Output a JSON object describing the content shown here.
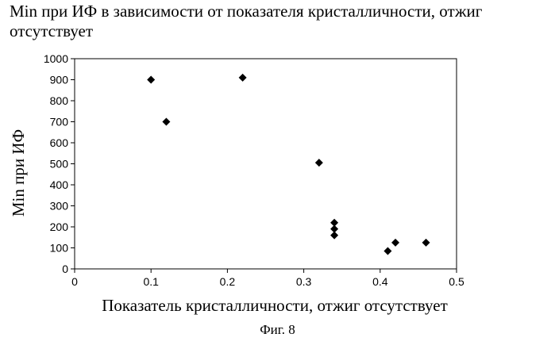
{
  "chart_data": {
    "type": "scatter",
    "title": "Min при ИФ в зависимости от показателя кристалличности, отжиг отсутствует",
    "xlabel": "Показатель кристалличности, отжиг отсутствует",
    "ylabel": "Min при ИФ",
    "xlim": [
      0,
      0.5
    ],
    "ylim": [
      0,
      1000
    ],
    "x_ticks": [
      "0",
      "0.1",
      "0.2",
      "0.3",
      "0.4",
      "0.5"
    ],
    "y_ticks": [
      "0",
      "100",
      "200",
      "300",
      "400",
      "500",
      "600",
      "700",
      "800",
      "900",
      "1000"
    ],
    "grid": false,
    "marker": "diamond",
    "color": "#000000",
    "points": [
      {
        "x": 0.1,
        "y": 900
      },
      {
        "x": 0.12,
        "y": 700
      },
      {
        "x": 0.22,
        "y": 910
      },
      {
        "x": 0.32,
        "y": 505
      },
      {
        "x": 0.34,
        "y": 220
      },
      {
        "x": 0.34,
        "y": 190
      },
      {
        "x": 0.34,
        "y": 160
      },
      {
        "x": 0.41,
        "y": 85
      },
      {
        "x": 0.42,
        "y": 125
      },
      {
        "x": 0.46,
        "y": 125
      }
    ]
  },
  "caption": "Фиг. 8"
}
